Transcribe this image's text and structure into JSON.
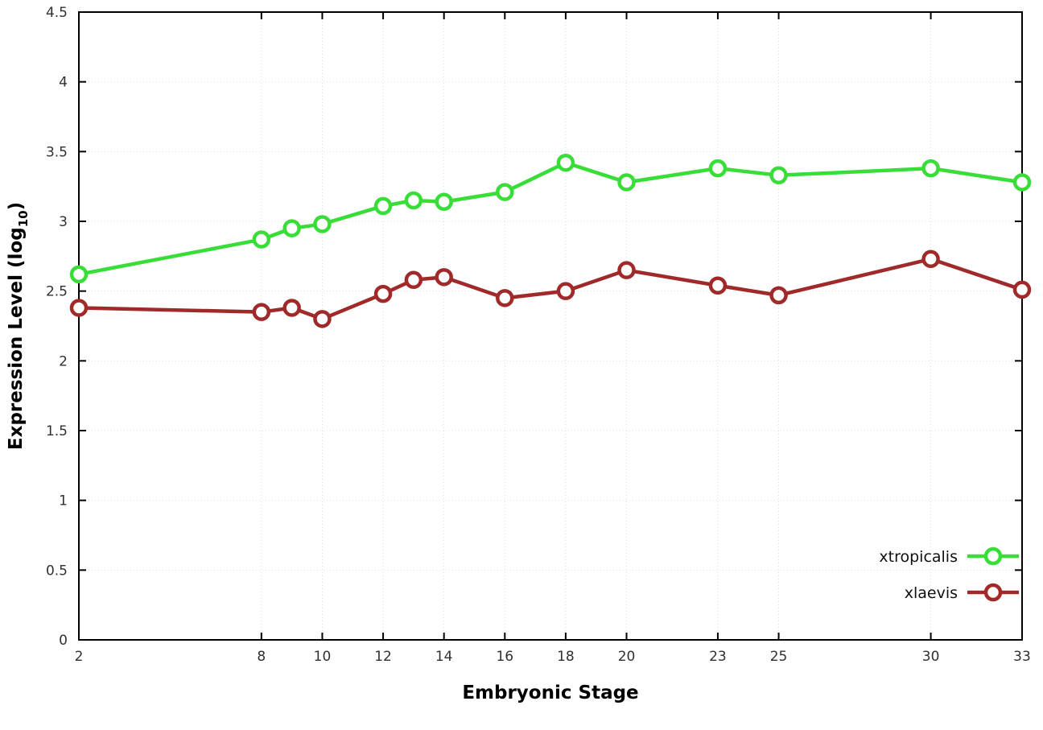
{
  "chart_data": {
    "type": "line",
    "title": "",
    "xlabel": "Embryonic Stage",
    "ylabel": {
      "main": "Expression Level (log",
      "sub": "10",
      "close": ")"
    },
    "x": [
      2,
      8,
      9,
      10,
      12,
      13,
      14,
      16,
      18,
      20,
      23,
      25,
      30,
      33
    ],
    "xticks": [
      2,
      8,
      10,
      12,
      14,
      16,
      18,
      20,
      23,
      25,
      30,
      33
    ],
    "yticks": [
      0,
      0.5,
      1,
      1.5,
      2,
      2.5,
      3,
      3.5,
      4,
      4.5
    ],
    "xlim": [
      2,
      33
    ],
    "ylim": [
      0,
      4.5
    ],
    "grid": true,
    "legend_position": "bottom-right",
    "series": [
      {
        "name": "xtropicalis",
        "color": "#38dd38",
        "values": [
          2.62,
          2.87,
          2.95,
          2.98,
          3.11,
          3.15,
          3.14,
          3.21,
          3.42,
          3.28,
          3.38,
          3.33,
          3.38,
          3.28
        ]
      },
      {
        "name": "xlaevis",
        "color": "#a02a2a",
        "values": [
          2.38,
          2.35,
          2.38,
          2.3,
          2.48,
          2.58,
          2.6,
          2.45,
          2.5,
          2.65,
          2.54,
          2.47,
          2.73,
          2.51
        ]
      }
    ],
    "colors": {
      "background": "#ffffff",
      "border": "#000000",
      "grid": "#dcdcdc"
    }
  }
}
